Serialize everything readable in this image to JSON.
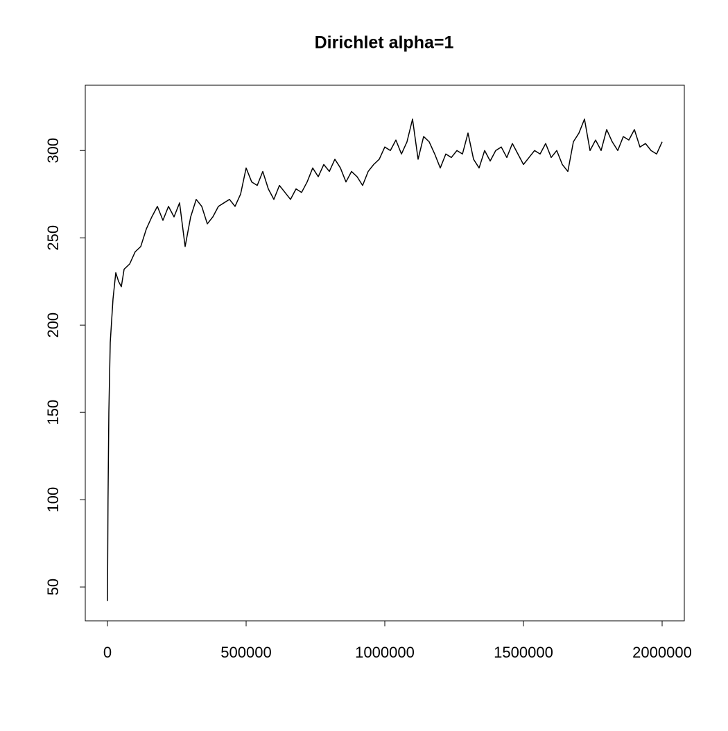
{
  "chart_data": {
    "type": "line",
    "title": "Dirichlet alpha=1",
    "x": [
      0,
      2000,
      5000,
      10000,
      20000,
      30000,
      40000,
      50000,
      60000,
      80000,
      100000,
      120000,
      140000,
      160000,
      180000,
      200000,
      220000,
      240000,
      260000,
      280000,
      300000,
      320000,
      340000,
      360000,
      380000,
      400000,
      420000,
      440000,
      460000,
      480000,
      500000,
      520000,
      540000,
      560000,
      580000,
      600000,
      620000,
      640000,
      660000,
      680000,
      700000,
      720000,
      740000,
      760000,
      780000,
      800000,
      820000,
      840000,
      860000,
      880000,
      900000,
      920000,
      940000,
      960000,
      980000,
      1000000,
      1020000,
      1040000,
      1060000,
      1080000,
      1100000,
      1120000,
      1140000,
      1160000,
      1180000,
      1200000,
      1220000,
      1240000,
      1260000,
      1280000,
      1300000,
      1320000,
      1340000,
      1360000,
      1380000,
      1400000,
      1420000,
      1440000,
      1460000,
      1480000,
      1500000,
      1520000,
      1540000,
      1560000,
      1580000,
      1600000,
      1620000,
      1640000,
      1660000,
      1680000,
      1700000,
      1720000,
      1740000,
      1760000,
      1780000,
      1800000,
      1820000,
      1840000,
      1860000,
      1880000,
      1900000,
      1920000,
      1940000,
      1960000,
      1980000,
      2000000
    ],
    "series": [
      {
        "color": "#000000",
        "values": [
          42,
          100,
          150,
          190,
          215,
          230,
          225,
          222,
          232,
          235,
          242,
          245,
          255,
          262,
          268,
          260,
          268,
          262,
          270,
          245,
          262,
          272,
          268,
          258,
          262,
          268,
          270,
          272,
          268,
          275,
          290,
          282,
          280,
          288,
          278,
          272,
          280,
          276,
          272,
          278,
          276,
          282,
          290,
          285,
          292,
          288,
          295,
          290,
          282,
          288,
          285,
          280,
          288,
          292,
          295,
          302,
          300,
          306,
          298,
          305,
          318,
          295,
          308,
          305,
          298,
          290,
          298,
          296,
          300,
          298,
          310,
          295,
          290,
          300,
          294,
          300,
          302,
          296,
          304,
          298,
          292,
          296,
          300,
          298,
          304,
          296,
          300,
          292,
          288,
          305,
          310,
          318,
          300,
          306,
          300,
          312,
          305,
          300,
          308,
          306,
          312,
          302,
          304,
          300,
          298,
          305
        ]
      }
    ],
    "xlim": [
      -80000,
      2080000
    ],
    "xticks": [
      0,
      500000,
      1000000,
      1500000,
      2000000
    ],
    "ylim": [
      30.6,
      337.4
    ],
    "yticks": [
      50,
      100,
      150,
      200,
      250,
      300
    ]
  }
}
